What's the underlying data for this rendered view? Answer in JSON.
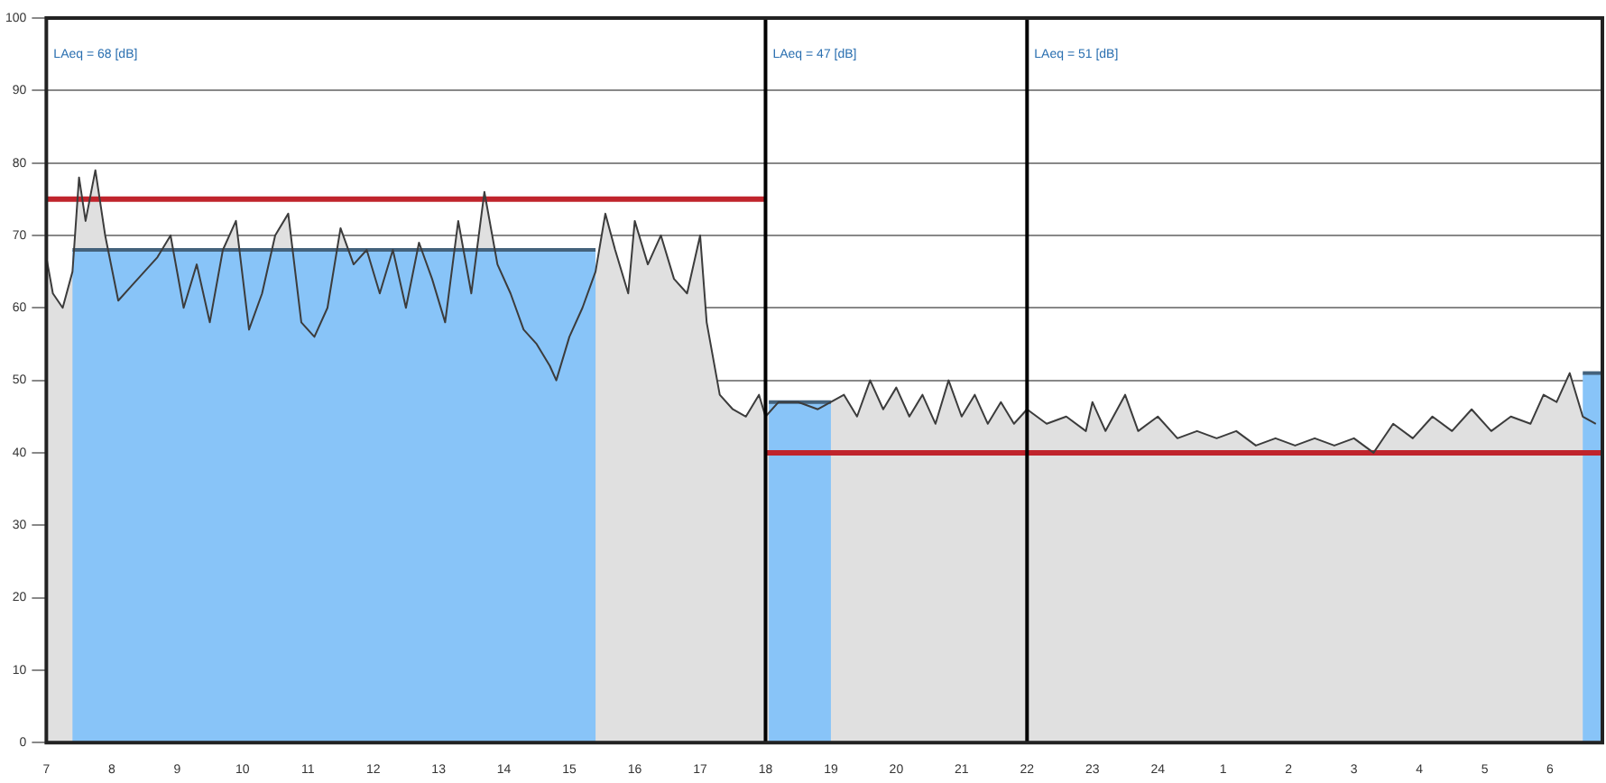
{
  "chart_data": {
    "type": "area",
    "xlim": [
      "--01-01T07:00",
      "--01-02T06:48"
    ],
    "ylim": [
      0,
      100
    ],
    "xticks": [
      {
        "value": "--01-01T07:00",
        "label": "7"
      },
      {
        "value": "--01-01T08:00",
        "label": "8"
      },
      {
        "value": "--01-01T09:00",
        "label": "9"
      },
      {
        "value": "--01-01T10:00",
        "label": "10"
      },
      {
        "value": "--01-01T11:00",
        "label": "11"
      },
      {
        "value": "--01-01T12:00",
        "label": "12"
      },
      {
        "value": "--01-01T13:00",
        "label": "13"
      },
      {
        "value": "--01-01T14:00",
        "label": "14"
      },
      {
        "value": "--01-01T15:00",
        "label": "15"
      },
      {
        "value": "--01-01T16:00",
        "label": "16"
      },
      {
        "value": "--01-01T17:00",
        "label": "17"
      },
      {
        "value": "--01-01T18:00",
        "label": "18"
      },
      {
        "value": "--01-01T19:00",
        "label": "19"
      },
      {
        "value": "--01-01T20:00",
        "label": "20"
      },
      {
        "value": "--01-01T21:00",
        "label": "21"
      },
      {
        "value": "--01-01T22:00",
        "label": "22"
      },
      {
        "value": "--01-01T23:00",
        "label": "23"
      },
      {
        "value": "--01-02T00:00",
        "label": "24"
      },
      {
        "value": "--01-02T01:00",
        "label": "1"
      },
      {
        "value": "--01-02T02:00",
        "label": "2"
      },
      {
        "value": "--01-02T03:00",
        "label": "3"
      },
      {
        "value": "--01-02T04:00",
        "label": "4"
      },
      {
        "value": "--01-02T05:00",
        "label": "5"
      },
      {
        "value": "--01-02T06:00",
        "label": "6"
      }
    ],
    "yticks": [
      0,
      10,
      20,
      30,
      40,
      50,
      60,
      70,
      80,
      90,
      100
    ],
    "grid": "y",
    "legend": false,
    "series": [
      {
        "color": "#3c3c3c",
        "x": [
          "--01-01T07:00",
          "--01-01T07:06",
          "--01-01T07:15",
          "--01-01T07:24",
          "--01-01T07:30",
          "--01-01T07:36",
          "--01-01T07:45",
          "--01-01T07:54",
          "--01-01T08:06",
          "--01-01T08:18",
          "--01-01T08:30",
          "--01-01T08:42",
          "--01-01T08:54",
          "--01-01T09:06",
          "--01-01T09:18",
          "--01-01T09:30",
          "--01-01T09:42",
          "--01-01T09:54",
          "--01-01T10:06",
          "--01-01T10:18",
          "--01-01T10:30",
          "--01-01T10:42",
          "--01-01T10:54",
          "--01-01T11:06",
          "--01-01T11:18",
          "--01-01T11:30",
          "--01-01T11:42",
          "--01-01T11:54",
          "--01-01T12:06",
          "--01-01T12:18",
          "--01-01T12:30",
          "--01-01T12:42",
          "--01-01T12:54",
          "--01-01T13:06",
          "--01-01T13:18",
          "--01-01T13:30",
          "--01-01T13:42",
          "--01-01T13:54",
          "--01-01T14:06",
          "--01-01T14:18",
          "--01-01T14:30",
          "--01-01T14:42",
          "--01-01T14:48",
          "--01-01T15:00",
          "--01-01T15:12",
          "--01-01T15:24",
          "--01-01T15:33",
          "--01-01T15:42",
          "--01-01T15:54",
          "--01-01T16:00",
          "--01-01T16:12",
          "--01-01T16:24",
          "--01-01T16:36",
          "--01-01T16:48",
          "--01-01T17:00",
          "--01-01T17:06",
          "--01-01T17:18",
          "--01-01T17:30",
          "--01-01T17:42",
          "--01-01T17:54",
          "--01-01T18:00",
          "--01-01T18:12",
          "--01-01T18:30",
          "--01-01T18:48",
          "--01-01T19:00",
          "--01-01T19:12",
          "--01-01T19:24",
          "--01-01T19:36",
          "--01-01T19:48",
          "--01-01T20:00",
          "--01-01T20:12",
          "--01-01T20:24",
          "--01-01T20:36",
          "--01-01T20:48",
          "--01-01T21:00",
          "--01-01T21:12",
          "--01-01T21:24",
          "--01-01T21:36",
          "--01-01T21:48",
          "--01-01T22:00",
          "--01-01T22:18",
          "--01-01T22:36",
          "--01-01T22:54",
          "--01-01T23:00",
          "--01-01T23:12",
          "--01-01T23:30",
          "--01-01T23:42",
          "--01-02T00:00",
          "--01-02T00:18",
          "--01-02T00:36",
          "--01-02T00:54",
          "--01-02T01:12",
          "--01-02T01:30",
          "--01-02T01:48",
          "--01-02T02:06",
          "--01-02T02:24",
          "--01-02T02:42",
          "--01-02T03:00",
          "--01-02T03:18",
          "--01-02T03:36",
          "--01-02T03:54",
          "--01-02T04:12",
          "--01-02T04:30",
          "--01-02T04:48",
          "--01-02T05:06",
          "--01-02T05:24",
          "--01-02T05:42",
          "--01-02T05:54",
          "--01-02T06:06",
          "--01-02T06:18",
          "--01-02T06:30",
          "--01-02T06:42"
        ],
        "values": [
          67,
          62,
          60,
          65,
          78,
          72,
          79,
          70,
          61,
          63,
          65,
          67,
          70,
          60,
          66,
          58,
          68,
          72,
          57,
          62,
          70,
          73,
          58,
          56,
          60,
          71,
          66,
          68,
          62,
          68,
          60,
          69,
          64,
          58,
          72,
          62,
          76,
          66,
          62,
          57,
          55,
          52,
          50,
          56,
          60,
          65,
          73,
          68,
          62,
          72,
          66,
          70,
          64,
          62,
          70,
          58,
          48,
          46,
          45,
          48,
          45,
          47,
          47,
          46,
          47,
          48,
          45,
          50,
          46,
          49,
          45,
          48,
          44,
          50,
          45,
          48,
          44,
          47,
          44,
          46,
          44,
          45,
          43,
          47,
          43,
          48,
          43,
          45,
          42,
          43,
          42,
          43,
          41,
          42,
          41,
          42,
          41,
          42,
          40,
          44,
          42,
          45,
          43,
          46,
          43,
          45,
          44,
          48,
          47,
          51,
          45,
          44
        ]
      },
      {
        "color": "#88c4f8",
        "x": [
          "--01-01T07:24",
          "--01-01T15:24"
        ],
        "values": [
          68,
          68
        ]
      },
      {
        "color": "#88c4f8",
        "x": [
          "--01-01T18:03",
          "--01-01T19:00"
        ],
        "values": [
          47,
          47
        ]
      },
      {
        "color": "#88c4f8",
        "x": [
          "--01-02T06:30",
          "--01-02T06:48"
        ],
        "values": [
          51,
          51
        ]
      },
      {
        "type": "line",
        "color": "#c0242c",
        "x": [
          "--01-01T07:00",
          "--01-01T18:00"
        ],
        "values": [
          75,
          75
        ]
      },
      {
        "type": "line",
        "color": "#c0242c",
        "x": [
          "--01-01T18:00",
          "--01-02T06:48"
        ],
        "values": [
          40,
          40
        ]
      }
    ],
    "ref_lines": [
      {
        "axis": "x",
        "value": "--01-01T18:00",
        "color": "#000000"
      },
      {
        "axis": "x",
        "value": "--01-01T22:00",
        "color": "#000000"
      }
    ],
    "annotations": [
      "LAeq = 68 [dB]",
      "LAeq = 47 [dB]",
      "LAeq = 51 [dB]"
    ]
  }
}
